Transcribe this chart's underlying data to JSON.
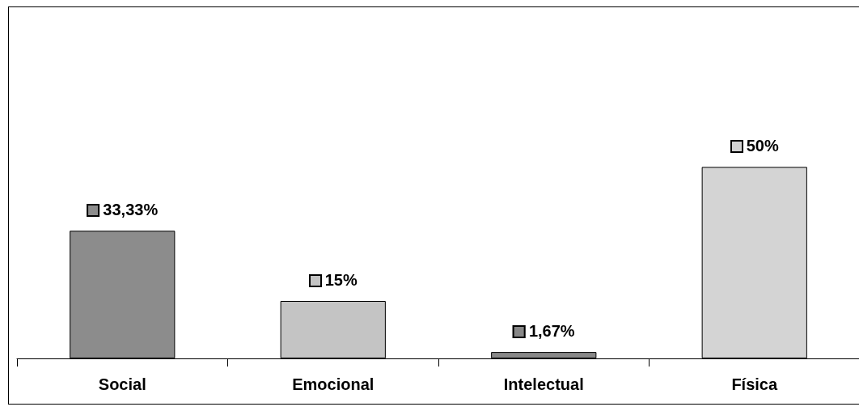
{
  "chart_data": {
    "type": "bar",
    "categories": [
      "Social",
      "Emocional",
      "Intelectual",
      "Física"
    ],
    "values": [
      33.33,
      15,
      1.67,
      50
    ],
    "colors": [
      "#8c8c8c",
      "#c4c4c4",
      "#888888",
      "#d4d4d4"
    ],
    "value_labels": [
      "33,33%",
      "15%",
      "1,67%",
      "50%"
    ],
    "grid": false
  }
}
